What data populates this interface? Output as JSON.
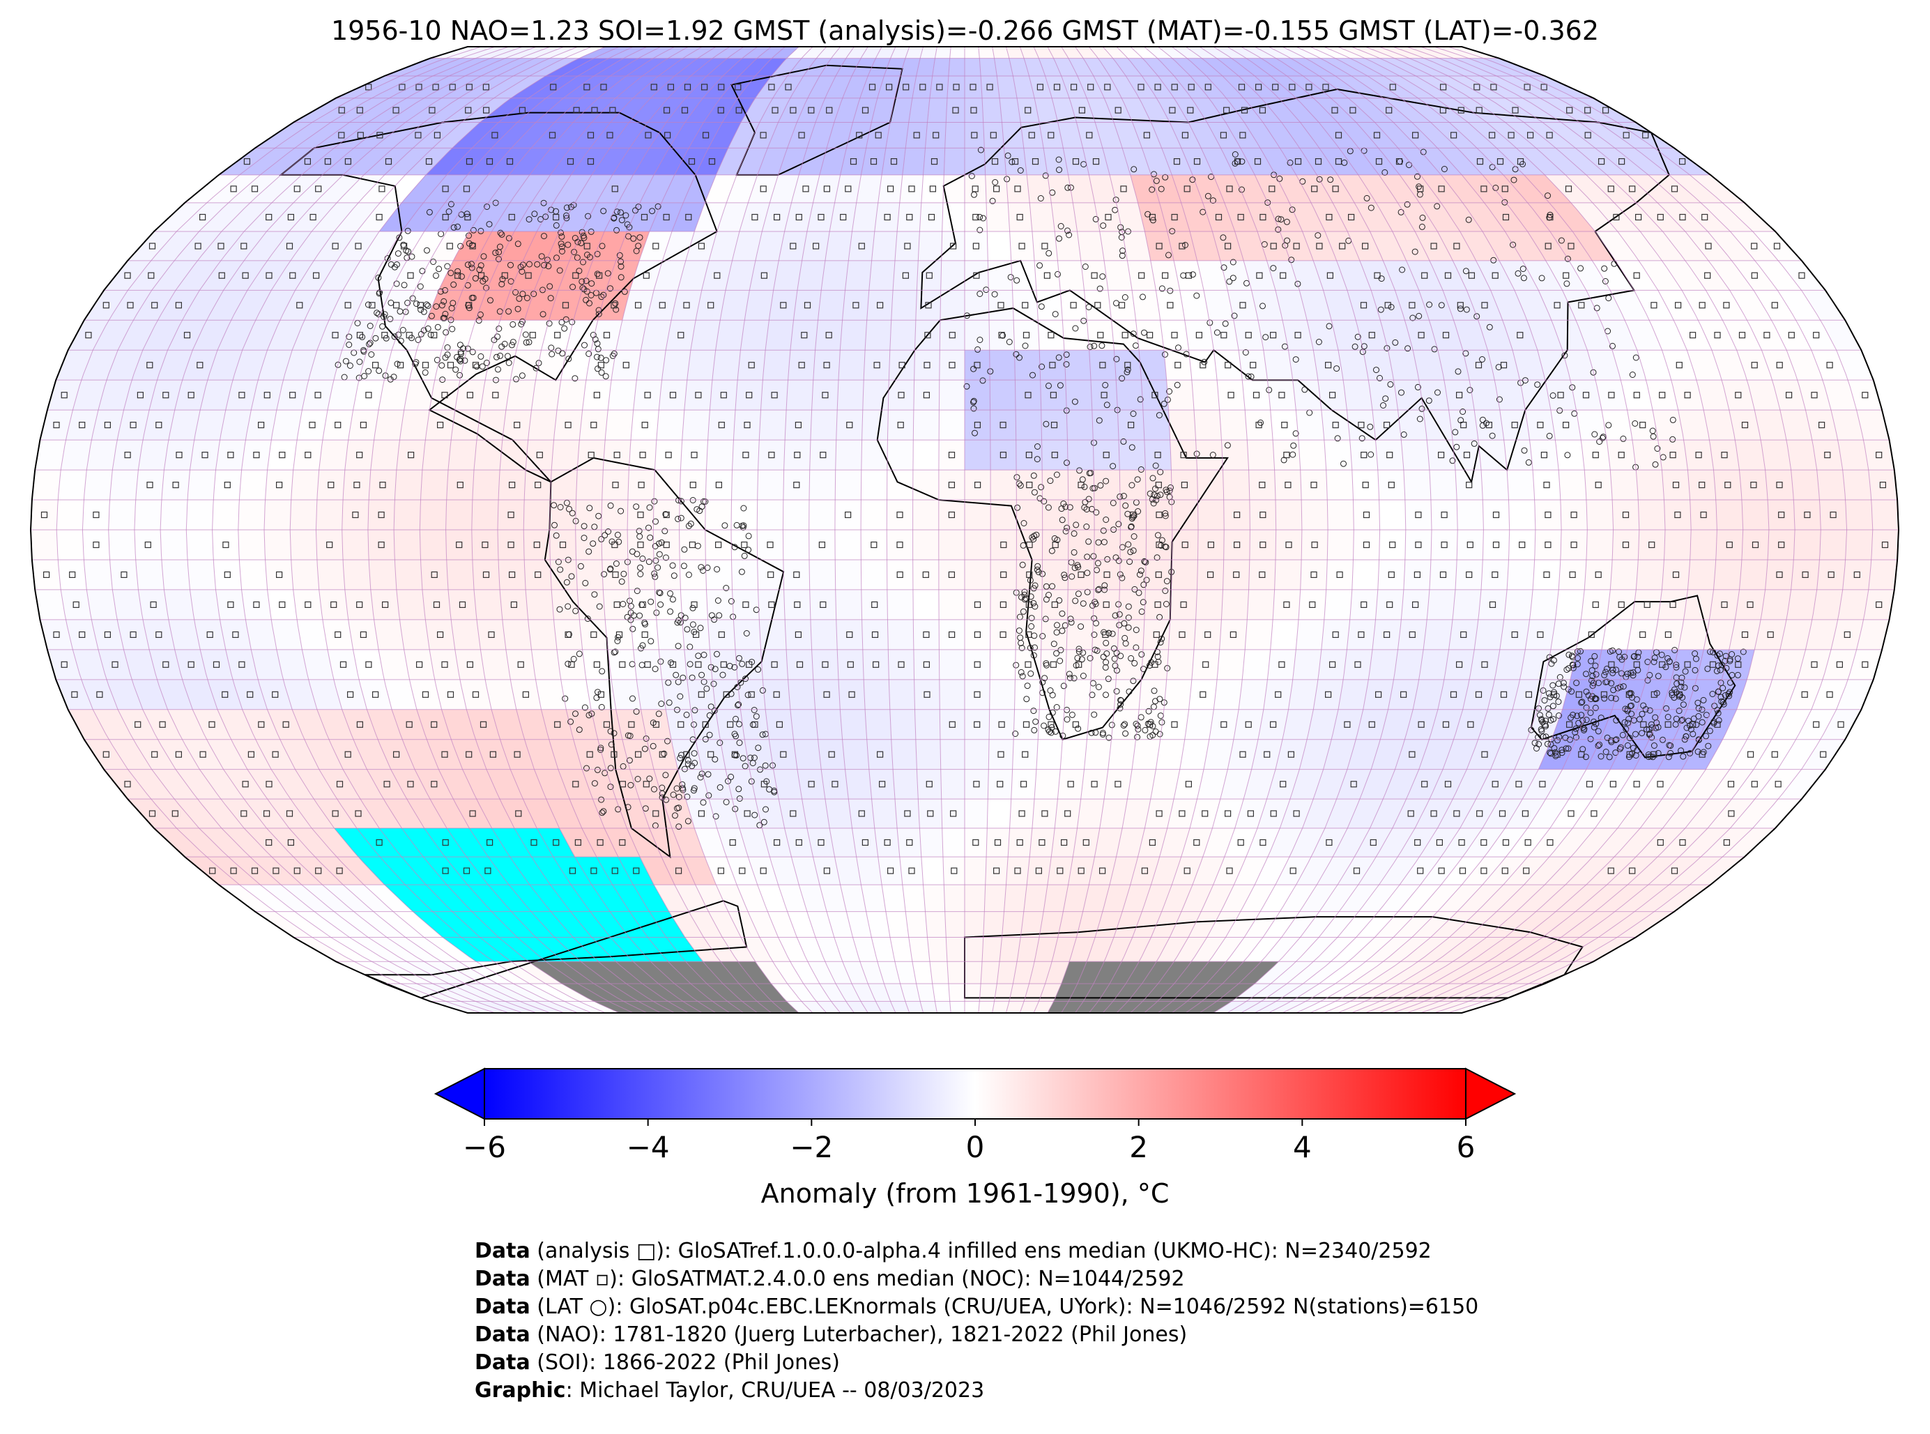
{
  "title": "1956-10 NAO=1.23 SOI=1.92 GMST (analysis)=-0.266 GMST (MAT)=-0.155 GMST (LAT)=-0.362",
  "colorbar": {
    "ticks": [
      "−6",
      "−4",
      "−2",
      "0",
      "2",
      "4",
      "6"
    ],
    "tick_values": [
      -6,
      -4,
      -2,
      0,
      2,
      4,
      6
    ],
    "label": "Anomaly (from 1961-1990), °C",
    "range": [
      -6,
      6
    ],
    "colors": {
      "min": "#0000ff",
      "mid": "#ffffff",
      "max": "#ff0000"
    },
    "extend": "both"
  },
  "map": {
    "projection": "Robinson",
    "grid_cell_deg": 5,
    "missing_color": "#00ffff",
    "land_mask_color": "#808080",
    "grid_line_color": "#c080c0"
  },
  "credits": [
    {
      "bold": "Data",
      "text": " (analysis □): GloSATref.1.0.0.0-alpha.4 infilled ens median (UKMO-HC): N=2340/2592"
    },
    {
      "bold": "Data",
      "text": " (MAT ▫): GloSATMAT.2.4.0.0 ens median (NOC): N=1044/2592"
    },
    {
      "bold": "Data",
      "text": " (LAT ○): GloSAT.p04c.EBC.LEKnormals (CRU/UEA, UYork): N=1046/2592 N(stations)=6150"
    },
    {
      "bold": "Data",
      "text": " (NAO): 1781-1820 (Juerg Luterbacher), 1821-2022 (Phil Jones)"
    },
    {
      "bold": "Data",
      "text": " (SOI): 1866-2022 (Phil Jones)"
    },
    {
      "bold": "Graphic",
      "text": ": Michael Taylor, CRU/UEA -- 08/03/2023"
    }
  ]
}
